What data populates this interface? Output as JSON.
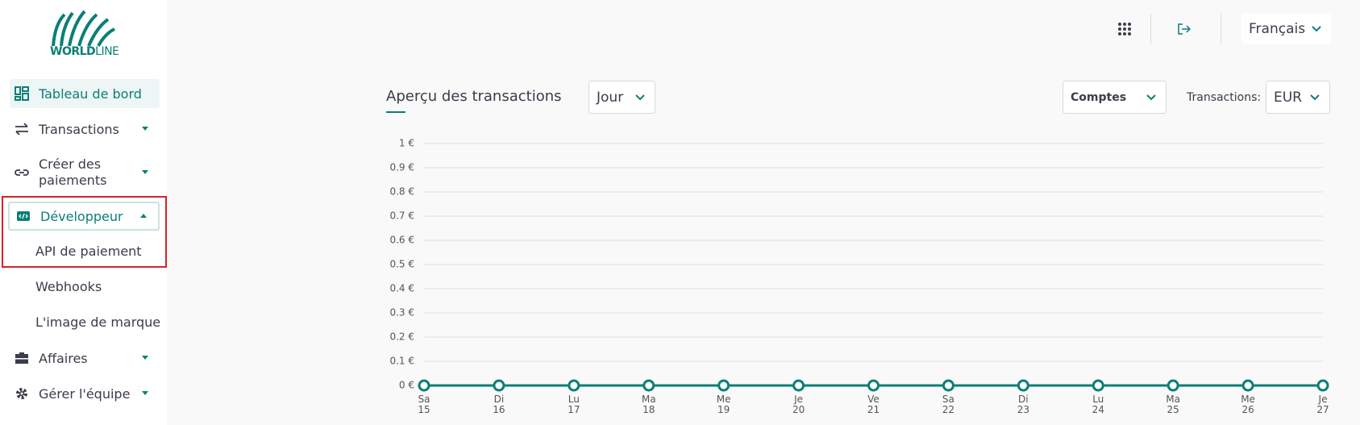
{
  "logo": {
    "bold": "WORLD",
    "light": "LINE"
  },
  "nav": [
    {
      "label": "Tableau de bord"
    },
    {
      "label": "Transactions"
    },
    {
      "label": "Créer des paiements"
    },
    {
      "label": "Développeur",
      "children": [
        "API de paiement",
        "Webhooks",
        "L'image de marque"
      ]
    },
    {
      "label": "Affaires"
    },
    {
      "label": "Gérer l'équipe"
    }
  ],
  "header": {
    "language": "Français"
  },
  "chart_data": {
    "type": "line",
    "title": "Aperçu des transactions",
    "period": "Jour",
    "accounts": "Comptes",
    "currency_label": "Transactions:",
    "currency": "EUR",
    "categories": [
      "Sa 15",
      "Di 16",
      "Lu 17",
      "Ma 18",
      "Me 19",
      "Je 20",
      "Ve 21",
      "Sa 22",
      "Di 23",
      "Lu 24",
      "Ma 25",
      "Me 26",
      "Je 27"
    ],
    "series": [
      {
        "color": "#0b7f76",
        "values": [
          0,
          0,
          0,
          0,
          0,
          0,
          0,
          0,
          0,
          0,
          0,
          0,
          0
        ]
      }
    ],
    "ylim": [
      0,
      1
    ],
    "yticks": [
      {
        "value": 0,
        "label": "0 €"
      },
      {
        "value": 0.1,
        "label": "0.1 €"
      },
      {
        "value": 0.2,
        "label": "0.2 €"
      },
      {
        "value": 0.3,
        "label": "0.3 €"
      },
      {
        "value": 0.4,
        "label": "0.4 €"
      },
      {
        "value": 0.5,
        "label": "0.5 €"
      },
      {
        "value": 0.6,
        "label": "0.6 €"
      },
      {
        "value": 0.7,
        "label": "0.7 €"
      },
      {
        "value": 0.8,
        "label": "0.8 €"
      },
      {
        "value": 0.9,
        "label": "0.9 €"
      },
      {
        "value": 1,
        "label": "1 €"
      }
    ],
    "grid": true
  }
}
